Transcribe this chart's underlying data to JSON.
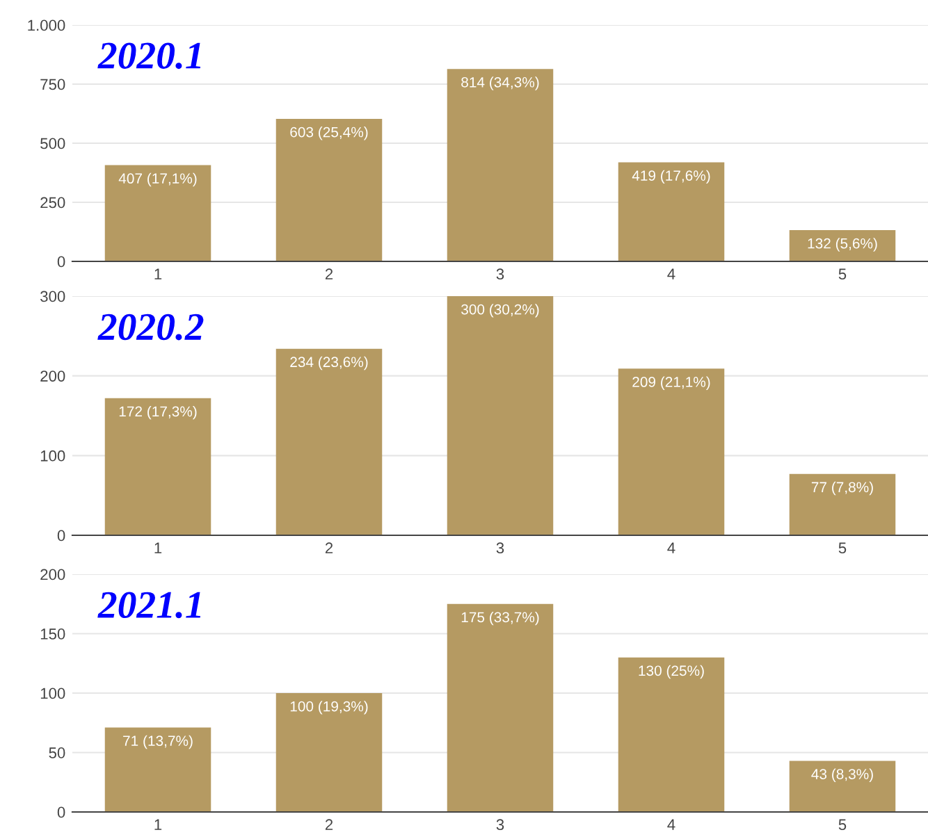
{
  "chart_data": [
    {
      "type": "bar",
      "categories": [
        "1",
        "2",
        "3",
        "4",
        "5"
      ],
      "values": [
        407,
        603,
        814,
        419,
        132
      ],
      "color": "#b59a62",
      "value_labels": [
        "407 (17,1%)",
        "603 (25,4%)",
        "814 (34,3%)",
        "419 (17,6%)",
        "132 (5,6%)"
      ],
      "ylim": [
        0,
        1000
      ],
      "yticks": [
        0,
        250,
        500,
        750,
        {
          "value": 1000,
          "label": "1.000"
        }
      ],
      "grid": "y",
      "annotations": [
        "2020.1"
      ]
    },
    {
      "type": "bar",
      "categories": [
        "1",
        "2",
        "3",
        "4",
        "5"
      ],
      "values": [
        172,
        234,
        300,
        209,
        77
      ],
      "color": "#b59a62",
      "value_labels": [
        "172 (17,3%)",
        "234 (23,6%)",
        "300 (30,2%)",
        "209 (21,1%)",
        "77 (7,8%)"
      ],
      "ylim": [
        0,
        300
      ],
      "yticks": [
        0,
        100,
        200,
        300
      ],
      "grid": "y",
      "annotations": [
        "2020.2"
      ]
    },
    {
      "type": "bar",
      "categories": [
        "1",
        "2",
        "3",
        "4",
        "5"
      ],
      "values": [
        71,
        100,
        175,
        130,
        43
      ],
      "color": "#b59a62",
      "value_labels": [
        "71 (13,7%)",
        "100 (19,3%)",
        "175 (33,7%)",
        "130 (25%)",
        "43 (8,3%)"
      ],
      "ylim": [
        0,
        200
      ],
      "yticks": [
        0,
        50,
        100,
        150,
        200
      ],
      "grid": "y",
      "annotations": [
        "2021.1"
      ]
    }
  ]
}
